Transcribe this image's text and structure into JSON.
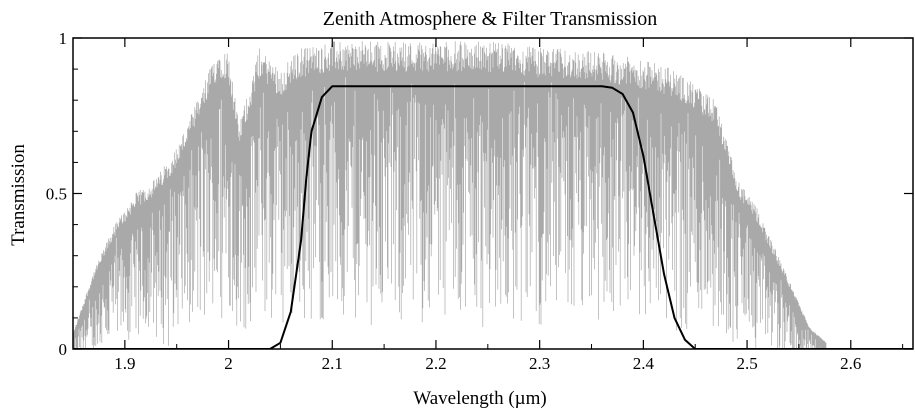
{
  "chart_data": {
    "type": "line",
    "title": "Zenith Atmosphere & Filter Transmission",
    "xlabel": "Wavelength (µm)",
    "ylabel": "Transmission",
    "xlim": [
      1.85,
      2.66
    ],
    "ylim": [
      0,
      1
    ],
    "xticks": [
      1.9,
      2.0,
      2.1,
      2.2,
      2.3,
      2.4,
      2.5,
      2.6
    ],
    "xtick_labels": [
      "1.9",
      "2",
      "2.1",
      "2.2",
      "2.3",
      "2.4",
      "2.5",
      "2.6"
    ],
    "yticks": [
      0,
      0.5,
      1
    ],
    "ytick_labels": [
      "0",
      "0.5",
      "1"
    ],
    "grid": false,
    "series": [
      {
        "color": "#9a9a9a",
        "envelope": [
          [
            1.85,
            0.05
          ],
          [
            1.87,
            0.25
          ],
          [
            1.89,
            0.4
          ],
          [
            1.91,
            0.5
          ],
          [
            1.93,
            0.55
          ],
          [
            1.95,
            0.65
          ],
          [
            1.97,
            0.8
          ],
          [
            1.99,
            0.97
          ],
          [
            2.0,
            0.96
          ],
          [
            2.01,
            0.72
          ],
          [
            2.03,
            0.97
          ],
          [
            2.05,
            0.9
          ],
          [
            2.07,
            0.97
          ],
          [
            2.1,
            0.99
          ],
          [
            2.15,
            0.99
          ],
          [
            2.2,
            0.99
          ],
          [
            2.25,
            0.99
          ],
          [
            2.3,
            0.97
          ],
          [
            2.35,
            0.96
          ],
          [
            2.4,
            0.93
          ],
          [
            2.43,
            0.9
          ],
          [
            2.45,
            0.85
          ],
          [
            2.47,
            0.8
          ],
          [
            2.49,
            0.55
          ],
          [
            2.51,
            0.45
          ],
          [
            2.53,
            0.3
          ],
          [
            2.55,
            0.15
          ],
          [
            2.56,
            0.07
          ],
          [
            2.58,
            0.01
          ],
          [
            2.66,
            0.0
          ]
        ]
      },
      {
        "color": "#000000",
        "points": [
          [
            1.85,
            0.0
          ],
          [
            2.04,
            0.0
          ],
          [
            2.05,
            0.02
          ],
          [
            2.06,
            0.12
          ],
          [
            2.07,
            0.35
          ],
          [
            2.075,
            0.55
          ],
          [
            2.08,
            0.7
          ],
          [
            2.09,
            0.81
          ],
          [
            2.1,
            0.845
          ],
          [
            2.36,
            0.845
          ],
          [
            2.37,
            0.84
          ],
          [
            2.38,
            0.82
          ],
          [
            2.39,
            0.76
          ],
          [
            2.4,
            0.62
          ],
          [
            2.41,
            0.43
          ],
          [
            2.42,
            0.24
          ],
          [
            2.43,
            0.1
          ],
          [
            2.44,
            0.03
          ],
          [
            2.45,
            0.0
          ],
          [
            2.66,
            0.0
          ]
        ]
      }
    ]
  }
}
